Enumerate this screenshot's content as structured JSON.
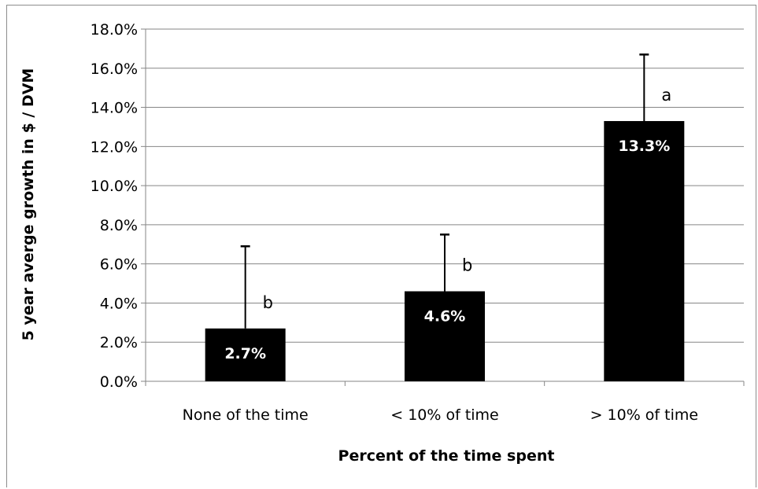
{
  "chart_data": {
    "type": "bar",
    "title": "",
    "xlabel": "Percent of the time spent",
    "ylabel": "5 year averge growth in $ / DVM",
    "categories": [
      "None of the time",
      "< 10% of time",
      "> 10% of time"
    ],
    "values": [
      2.7,
      4.6,
      13.3
    ],
    "value_labels": [
      "2.7%",
      "4.6%",
      "13.3%"
    ],
    "error_upper": [
      6.9,
      7.5,
      16.7
    ],
    "significance_letters": [
      "b",
      "b",
      "a"
    ],
    "ylim": [
      0,
      18
    ],
    "y_ticks": [
      0,
      2,
      4,
      6,
      8,
      10,
      12,
      14,
      16,
      18
    ],
    "y_tick_labels": [
      "0.0%",
      "2.0%",
      "4.0%",
      "6.0%",
      "8.0%",
      "10.0%",
      "12.0%",
      "14.0%",
      "16.0%",
      "18.0%"
    ],
    "grid": true,
    "legend": "none",
    "bar_color": "#000000",
    "label_color": "#ffffff",
    "grid_color": "#868686"
  }
}
